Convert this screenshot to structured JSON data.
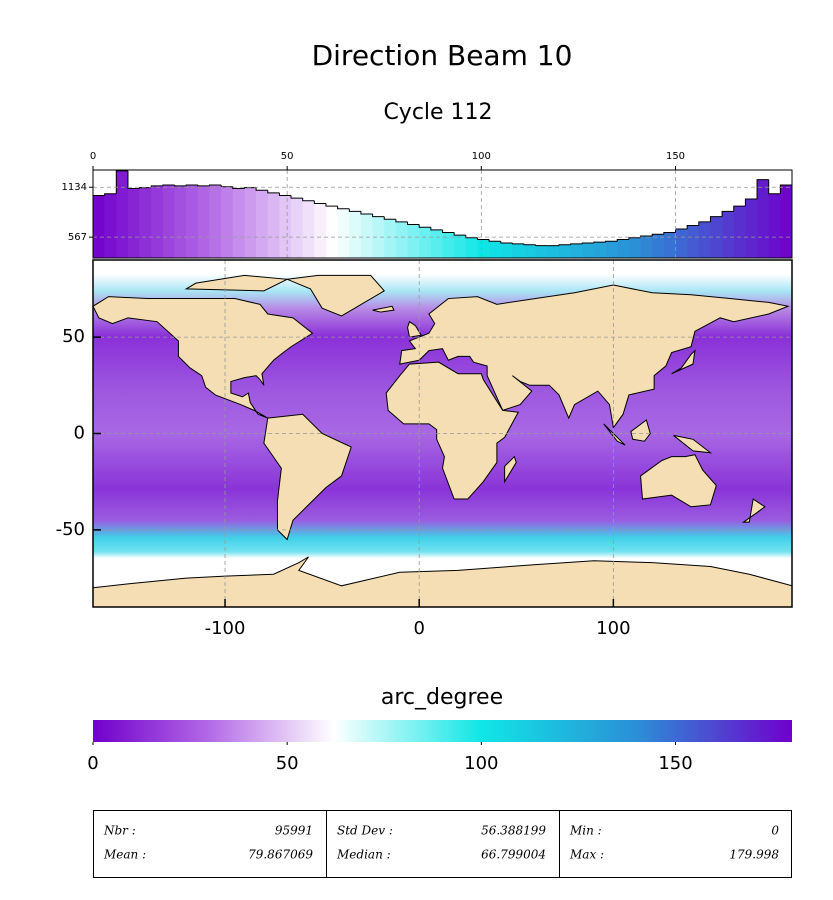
{
  "title": "Direction Beam 10",
  "subtitle": "Cycle 112",
  "chart_data": [
    {
      "type": "histogram",
      "bins": [
        0,
        3,
        6,
        9,
        12,
        15,
        18,
        21,
        24,
        27,
        30,
        33,
        36,
        39,
        42,
        45,
        48,
        51,
        54,
        57,
        60,
        63,
        66,
        69,
        72,
        75,
        78,
        81,
        84,
        87,
        90,
        93,
        96,
        99,
        102,
        105,
        108,
        111,
        114,
        117,
        120,
        123,
        126,
        129,
        132,
        135,
        138,
        141,
        144,
        147,
        150,
        153,
        156,
        159,
        162,
        165,
        168,
        171,
        174,
        177,
        180
      ],
      "values": [
        1040,
        1060,
        1320,
        1120,
        1130,
        1150,
        1160,
        1150,
        1160,
        1150,
        1160,
        1140,
        1120,
        1130,
        1100,
        1070,
        1040,
        1010,
        980,
        950,
        920,
        890,
        860,
        830,
        800,
        770,
        740,
        710,
        680,
        650,
        620,
        590,
        560,
        540,
        520,
        500,
        490,
        480,
        470,
        470,
        480,
        490,
        500,
        510,
        520,
        540,
        560,
        580,
        600,
        620,
        660,
        700,
        740,
        800,
        860,
        920,
        1000,
        1220,
        1060,
        1160
      ],
      "xlim": [
        0,
        180
      ],
      "xticks": [
        0,
        50,
        100,
        150
      ],
      "ylim": [
        330,
        1330
      ],
      "yticks": [
        567,
        1134
      ],
      "grid": true
    },
    {
      "type": "map",
      "xlim": [
        -168,
        192
      ],
      "ylim": [
        -90,
        90
      ],
      "xticks": [
        -100,
        0,
        100
      ],
      "yticks": [
        -50,
        0,
        50
      ],
      "grid": true,
      "land_color": "#f5deb3"
    },
    {
      "type": "colorbar",
      "label": "arc_degree",
      "xlim": [
        0,
        180
      ],
      "xticks": [
        0,
        50,
        100,
        150
      ],
      "colormap": [
        {
          "value": 0,
          "color": "#7000cc"
        },
        {
          "value": 30,
          "color": "#b36ae6"
        },
        {
          "value": 62,
          "color": "#ffffff"
        },
        {
          "value": 100,
          "color": "#10e6e6"
        },
        {
          "value": 140,
          "color": "#2b8fd6"
        },
        {
          "value": 180,
          "color": "#7000cc"
        }
      ]
    }
  ],
  "stats": [
    [
      {
        "label": "Nbr :",
        "value": 95991
      },
      {
        "label": "Mean :",
        "value": 79.867069
      }
    ],
    [
      {
        "label": "Std Dev :",
        "value": 56.388199
      },
      {
        "label": "Median :",
        "value": 66.799004
      }
    ],
    [
      {
        "label": "Min :",
        "value": 0
      },
      {
        "label": "Max :",
        "value": 179.998
      }
    ]
  ]
}
